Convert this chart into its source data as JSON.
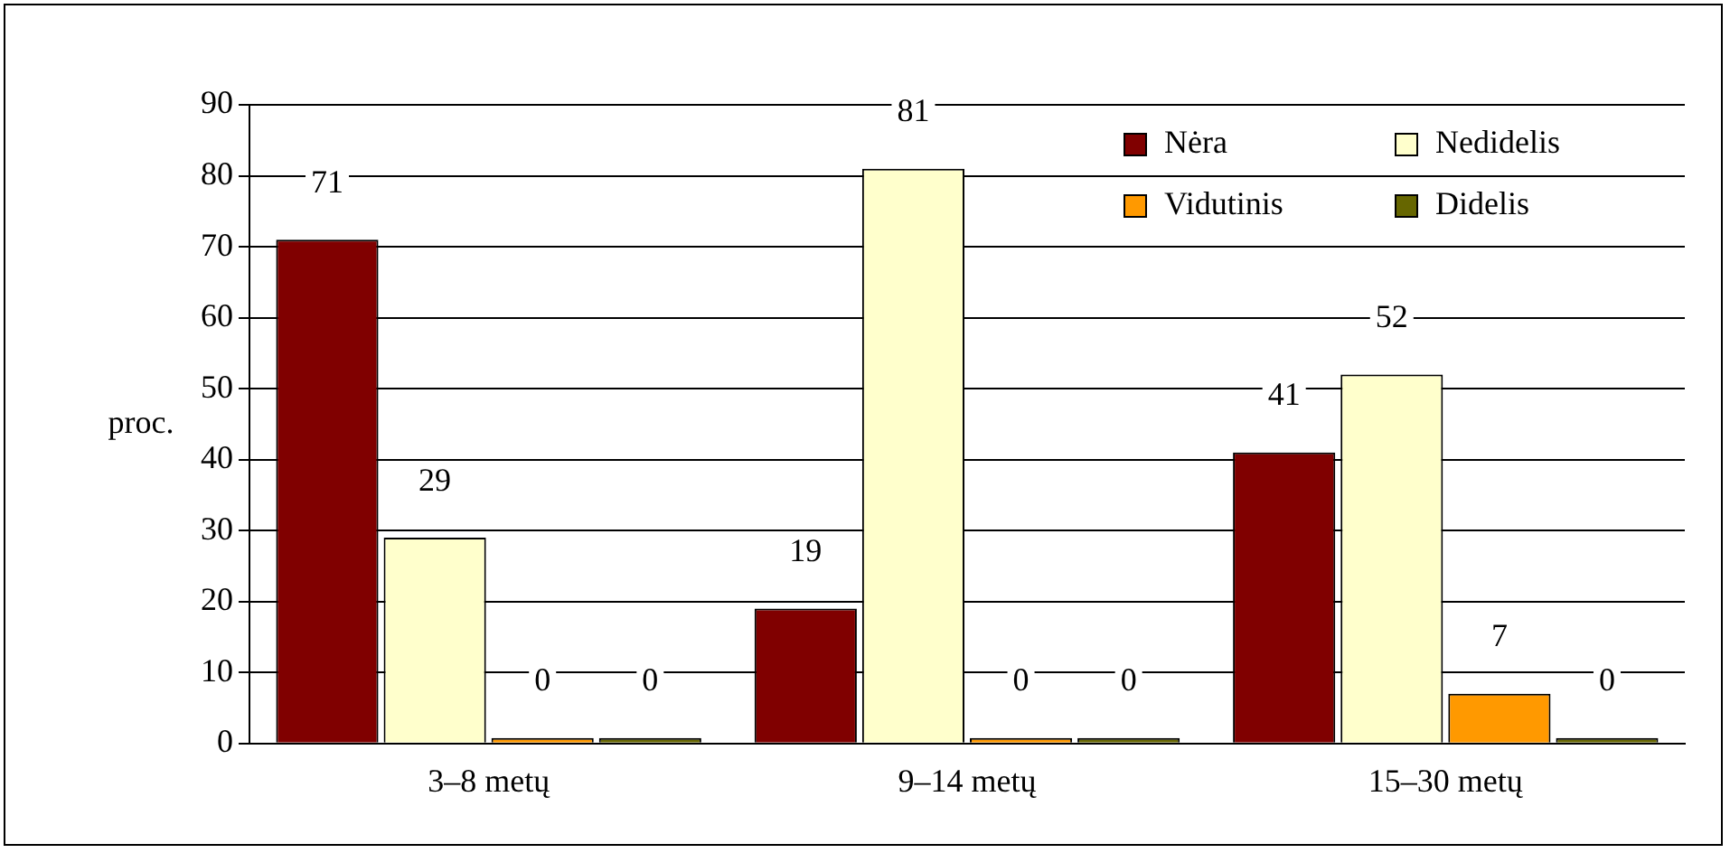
{
  "chart_data": {
    "type": "bar",
    "ylabel": "proc.",
    "categories": [
      "3–8 metų",
      "9–14 metų",
      "15–30 metų"
    ],
    "series": [
      {
        "name": "Nėra",
        "color": "#800000",
        "values": [
          71,
          19,
          41
        ]
      },
      {
        "name": "Nedidelis",
        "color": "#ffffcc",
        "values": [
          29,
          81,
          52
        ]
      },
      {
        "name": "Vidutinis",
        "color": "#ff9900",
        "values": [
          0,
          0,
          7
        ]
      },
      {
        "name": "Didelis",
        "color": "#666600",
        "values": [
          0,
          0,
          0
        ]
      }
    ],
    "ylim": [
      0,
      90
    ],
    "yticks": [
      0,
      10,
      20,
      30,
      40,
      50,
      60,
      70,
      80,
      90
    ],
    "grid": "y",
    "legend": "top right",
    "data_labels": true
  }
}
